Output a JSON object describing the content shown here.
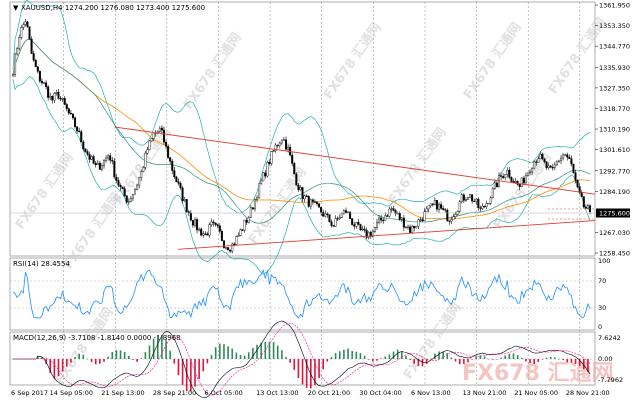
{
  "header": {
    "symbol_line": "XAUUSD,H4  1274.200 1276.080 1273.400 1275.600"
  },
  "price_axis": {
    "labels": [
      "1361.950",
      "1353.350",
      "1344.770",
      "1335.930",
      "1327.350",
      "1318.770",
      "1310.190",
      "1301.610",
      "1292.770",
      "1284.190",
      "1275.600",
      "1267.030",
      "1258.450"
    ],
    "current_price": "1275.600"
  },
  "rsi_panel": {
    "title": "RSI(14) 28.4554",
    "levels": [
      "100",
      "70",
      "30",
      "0"
    ]
  },
  "macd_panel": {
    "title": "MACD(12,26,9) -3.7108 -1.8140 0.0000 -1.8968",
    "levels": [
      "7.6242",
      "0.00",
      "-7.7962"
    ]
  },
  "time_axis": {
    "labels": [
      "6 Sep 2017",
      "14 Sep 05:00",
      "21 Sep 13:00",
      "28 Sep 21:00",
      "6 Oct 05:00",
      "13 Oct 13:00",
      "20 Oct 21:00",
      "30 Oct 04:00",
      "6 Nov 13:00",
      "13 Nov 21:00",
      "21 Nov 05:00",
      "28 Nov 21:00"
    ]
  },
  "watermark": {
    "text": "FX678",
    "brand_cn": "汇通网"
  },
  "colors": {
    "candles": "#000000",
    "bollinger": "#20b2aa",
    "moving_average_orange": "#ff8c00",
    "triangle_lines": "#e03c31",
    "rsi_line": "#1e90ff",
    "macd_up": "#2e8b57",
    "macd_down": "#dc143c",
    "grid": "#777777"
  },
  "chart_data": {
    "type": "candlestick",
    "symbol": "XAUUSD",
    "timeframe": "H4",
    "last_ohlc": {
      "open": 1274.2,
      "high": 1276.08,
      "low": 1273.4,
      "close": 1275.6
    },
    "ylim": [
      1258.45,
      1361.95
    ],
    "price_path": [
      1335,
      1350,
      1356,
      1340,
      1332,
      1328,
      1322,
      1325,
      1320,
      1315,
      1310,
      1303,
      1298,
      1294,
      1296,
      1300,
      1290,
      1284,
      1280,
      1285,
      1292,
      1302,
      1308,
      1310,
      1301,
      1292,
      1285,
      1278,
      1272,
      1268,
      1266,
      1270,
      1268,
      1262,
      1261,
      1265,
      1270,
      1275,
      1283,
      1290,
      1297,
      1303,
      1307,
      1301,
      1290,
      1283,
      1280,
      1278,
      1276,
      1273,
      1270,
      1274,
      1276,
      1271,
      1268,
      1266,
      1267,
      1271,
      1274,
      1277,
      1274,
      1271,
      1268,
      1271,
      1274,
      1277,
      1279,
      1276,
      1273,
      1276,
      1281,
      1283,
      1280,
      1276,
      1280,
      1285,
      1290,
      1293,
      1289,
      1286,
      1291,
      1296,
      1299,
      1295,
      1292,
      1297,
      1300,
      1296,
      1285,
      1278,
      1275.6
    ],
    "triangle_upper": {
      "from": {
        "x": "22 Sep",
        "y": 1311
      },
      "to": {
        "x": "1 Dec",
        "y": 1283
      }
    },
    "triangle_lower": {
      "from": {
        "x": "6 Oct",
        "y": 1260
      },
      "to": {
        "x": "1 Dec",
        "y": 1272
      }
    },
    "rsi_last": 28.4554,
    "macd": {
      "main": -3.7108,
      "signal": -1.814,
      "hist": -1.8968
    }
  }
}
